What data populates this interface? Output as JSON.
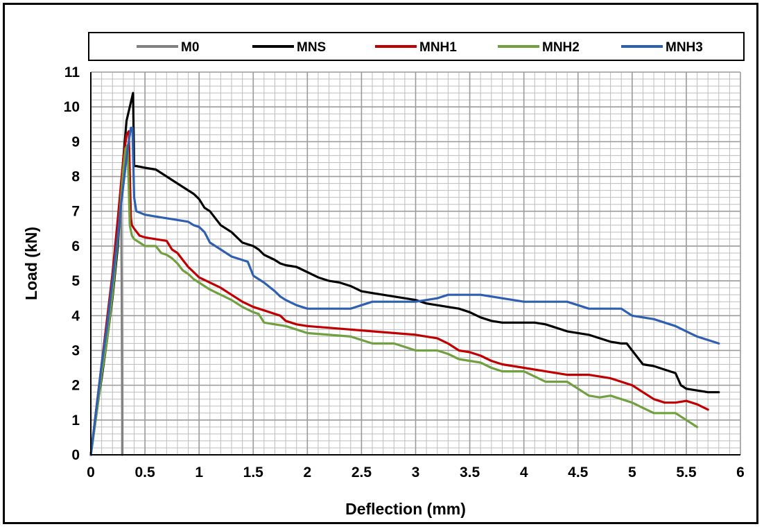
{
  "chart_data": {
    "type": "line",
    "xlabel": "Deflection (mm)",
    "ylabel": "Load (kN)",
    "xlim": [
      0,
      6
    ],
    "ylim": [
      0,
      11
    ],
    "xticks": [
      0,
      0.5,
      1,
      1.5,
      2,
      2.5,
      3,
      3.5,
      4,
      4.5,
      5,
      5.5,
      6
    ],
    "yticks": [
      0,
      1,
      2,
      3,
      4,
      5,
      6,
      7,
      8,
      9,
      10,
      11
    ],
    "xtick_labels": [
      "0",
      "0.5",
      "1",
      "1.5",
      "2",
      "2.5",
      "3",
      "3.5",
      "4",
      "4.5",
      "5",
      "5.5",
      "6"
    ],
    "ytick_labels": [
      "0",
      "1",
      "2",
      "3",
      "4",
      "5",
      "6",
      "7",
      "8",
      "9",
      "10",
      "11"
    ],
    "grid": true,
    "legend_position": "top",
    "series": [
      {
        "name": "M0",
        "color": "#808080",
        "x": [
          0,
          0.08,
          0.15,
          0.22,
          0.26,
          0.28,
          0.285,
          0.29,
          0.29
        ],
        "y": [
          0,
          1.8,
          3.5,
          5.5,
          6.8,
          7.5,
          5.0,
          1.0,
          0
        ]
      },
      {
        "name": "MNS",
        "color": "#000000",
        "x": [
          0,
          0.05,
          0.1,
          0.15,
          0.2,
          0.25,
          0.3,
          0.33,
          0.36,
          0.39,
          0.4,
          0.42,
          0.5,
          0.6,
          0.7,
          0.75,
          0.8,
          0.85,
          0.9,
          0.95,
          1.0,
          1.05,
          1.1,
          1.15,
          1.2,
          1.3,
          1.4,
          1.5,
          1.55,
          1.6,
          1.7,
          1.75,
          1.8,
          1.9,
          2.0,
          2.1,
          2.2,
          2.3,
          2.4,
          2.5,
          2.6,
          2.7,
          2.8,
          2.9,
          3.0,
          3.1,
          3.2,
          3.3,
          3.4,
          3.5,
          3.6,
          3.7,
          3.8,
          3.9,
          4.0,
          4.1,
          4.2,
          4.3,
          4.4,
          4.5,
          4.6,
          4.7,
          4.8,
          4.9,
          4.95,
          5.0,
          5.05,
          5.1,
          5.2,
          5.3,
          5.4,
          5.45,
          5.5,
          5.6,
          5.7,
          5.8
        ],
        "y": [
          0,
          1.2,
          2.2,
          3.3,
          4.5,
          6.0,
          8.5,
          9.6,
          10.0,
          10.4,
          8.3,
          8.3,
          8.25,
          8.2,
          8.0,
          7.9,
          7.8,
          7.7,
          7.6,
          7.5,
          7.35,
          7.1,
          7.0,
          6.8,
          6.6,
          6.4,
          6.1,
          6.0,
          5.9,
          5.75,
          5.6,
          5.5,
          5.45,
          5.4,
          5.25,
          5.1,
          5.0,
          4.95,
          4.85,
          4.7,
          4.65,
          4.6,
          4.55,
          4.5,
          4.45,
          4.35,
          4.3,
          4.25,
          4.2,
          4.1,
          3.95,
          3.85,
          3.8,
          3.8,
          3.8,
          3.8,
          3.75,
          3.65,
          3.55,
          3.5,
          3.45,
          3.35,
          3.25,
          3.2,
          3.2,
          3.0,
          2.8,
          2.6,
          2.55,
          2.45,
          2.35,
          2.0,
          1.9,
          1.85,
          1.8,
          1.8
        ]
      },
      {
        "name": "MNH1",
        "color": "#c00000",
        "x": [
          0,
          0.05,
          0.1,
          0.15,
          0.2,
          0.25,
          0.3,
          0.33,
          0.35,
          0.37,
          0.38,
          0.4,
          0.45,
          0.5,
          0.6,
          0.7,
          0.75,
          0.8,
          0.85,
          0.9,
          0.95,
          1.0,
          1.1,
          1.2,
          1.3,
          1.4,
          1.5,
          1.6,
          1.7,
          1.75,
          1.8,
          1.9,
          2.0,
          2.2,
          2.4,
          2.6,
          2.8,
          3.0,
          3.1,
          3.2,
          3.3,
          3.4,
          3.5,
          3.6,
          3.7,
          3.8,
          3.9,
          4.0,
          4.1,
          4.2,
          4.3,
          4.4,
          4.5,
          4.6,
          4.7,
          4.8,
          4.9,
          5.0,
          5.1,
          5.2,
          5.3,
          5.4,
          5.5,
          5.6,
          5.7
        ],
        "y": [
          0,
          1.3,
          2.6,
          3.9,
          5.2,
          6.8,
          8.5,
          9.2,
          9.3,
          6.8,
          6.6,
          6.5,
          6.3,
          6.25,
          6.2,
          6.15,
          5.9,
          5.8,
          5.6,
          5.4,
          5.25,
          5.1,
          4.95,
          4.8,
          4.6,
          4.4,
          4.25,
          4.15,
          4.05,
          4.0,
          3.85,
          3.75,
          3.7,
          3.65,
          3.6,
          3.55,
          3.5,
          3.45,
          3.4,
          3.35,
          3.2,
          3.0,
          2.95,
          2.85,
          2.7,
          2.6,
          2.55,
          2.5,
          2.45,
          2.4,
          2.35,
          2.3,
          2.3,
          2.3,
          2.25,
          2.2,
          2.1,
          2.0,
          1.8,
          1.6,
          1.5,
          1.5,
          1.55,
          1.45,
          1.3
        ]
      },
      {
        "name": "MNH2",
        "color": "#70a040",
        "x": [
          0,
          0.05,
          0.1,
          0.15,
          0.2,
          0.25,
          0.3,
          0.32,
          0.34,
          0.36,
          0.38,
          0.4,
          0.45,
          0.5,
          0.55,
          0.6,
          0.65,
          0.7,
          0.75,
          0.8,
          0.85,
          0.9,
          0.95,
          1.0,
          1.1,
          1.2,
          1.3,
          1.4,
          1.5,
          1.55,
          1.6,
          1.7,
          1.8,
          1.9,
          2.0,
          2.2,
          2.4,
          2.5,
          2.6,
          2.8,
          2.9,
          3.0,
          3.1,
          3.2,
          3.3,
          3.4,
          3.5,
          3.6,
          3.7,
          3.8,
          3.9,
          4.0,
          4.1,
          4.2,
          4.3,
          4.4,
          4.5,
          4.6,
          4.7,
          4.8,
          4.9,
          5.0,
          5.1,
          5.2,
          5.3,
          5.4,
          5.5,
          5.6
        ],
        "y": [
          0,
          1.1,
          2.3,
          3.3,
          4.6,
          6.2,
          8.2,
          8.8,
          8.9,
          6.6,
          6.3,
          6.2,
          6.1,
          6.0,
          6.0,
          6.0,
          5.8,
          5.75,
          5.65,
          5.5,
          5.3,
          5.2,
          5.05,
          4.95,
          4.75,
          4.6,
          4.45,
          4.25,
          4.1,
          4.05,
          3.8,
          3.75,
          3.7,
          3.6,
          3.5,
          3.45,
          3.4,
          3.3,
          3.2,
          3.2,
          3.1,
          3.0,
          3.0,
          3.0,
          2.9,
          2.75,
          2.7,
          2.65,
          2.5,
          2.4,
          2.4,
          2.4,
          2.25,
          2.1,
          2.1,
          2.1,
          1.9,
          1.7,
          1.65,
          1.7,
          1.6,
          1.5,
          1.35,
          1.2,
          1.2,
          1.2,
          1.0,
          0.8
        ]
      },
      {
        "name": "MNH3",
        "color": "#2e5fb0",
        "x": [
          0,
          0.05,
          0.1,
          0.15,
          0.2,
          0.25,
          0.28,
          0.31,
          0.34,
          0.37,
          0.385,
          0.4,
          0.42,
          0.5,
          0.6,
          0.7,
          0.8,
          0.9,
          0.95,
          1.0,
          1.05,
          1.1,
          1.2,
          1.3,
          1.4,
          1.45,
          1.5,
          1.6,
          1.7,
          1.75,
          1.8,
          1.9,
          2.0,
          2.2,
          2.4,
          2.5,
          2.6,
          2.8,
          3.0,
          3.1,
          3.2,
          3.3,
          3.4,
          3.6,
          3.7,
          3.8,
          3.9,
          4.0,
          4.2,
          4.3,
          4.4,
          4.5,
          4.6,
          4.8,
          4.9,
          4.95,
          5.0,
          5.1,
          5.2,
          5.3,
          5.4,
          5.5,
          5.6,
          5.7,
          5.8
        ],
        "y": [
          0,
          1.3,
          2.6,
          3.7,
          5.0,
          6.3,
          7.2,
          8.0,
          8.8,
          9.4,
          9.4,
          7.4,
          7.0,
          6.9,
          6.85,
          6.8,
          6.75,
          6.7,
          6.6,
          6.55,
          6.4,
          6.1,
          5.9,
          5.7,
          5.6,
          5.55,
          5.15,
          4.95,
          4.7,
          4.55,
          4.45,
          4.3,
          4.2,
          4.2,
          4.2,
          4.3,
          4.4,
          4.4,
          4.4,
          4.45,
          4.5,
          4.6,
          4.6,
          4.6,
          4.55,
          4.5,
          4.45,
          4.4,
          4.4,
          4.4,
          4.4,
          4.3,
          4.2,
          4.2,
          4.2,
          4.1,
          4.0,
          3.95,
          3.9,
          3.8,
          3.7,
          3.55,
          3.4,
          3.3,
          3.2
        ]
      }
    ]
  }
}
